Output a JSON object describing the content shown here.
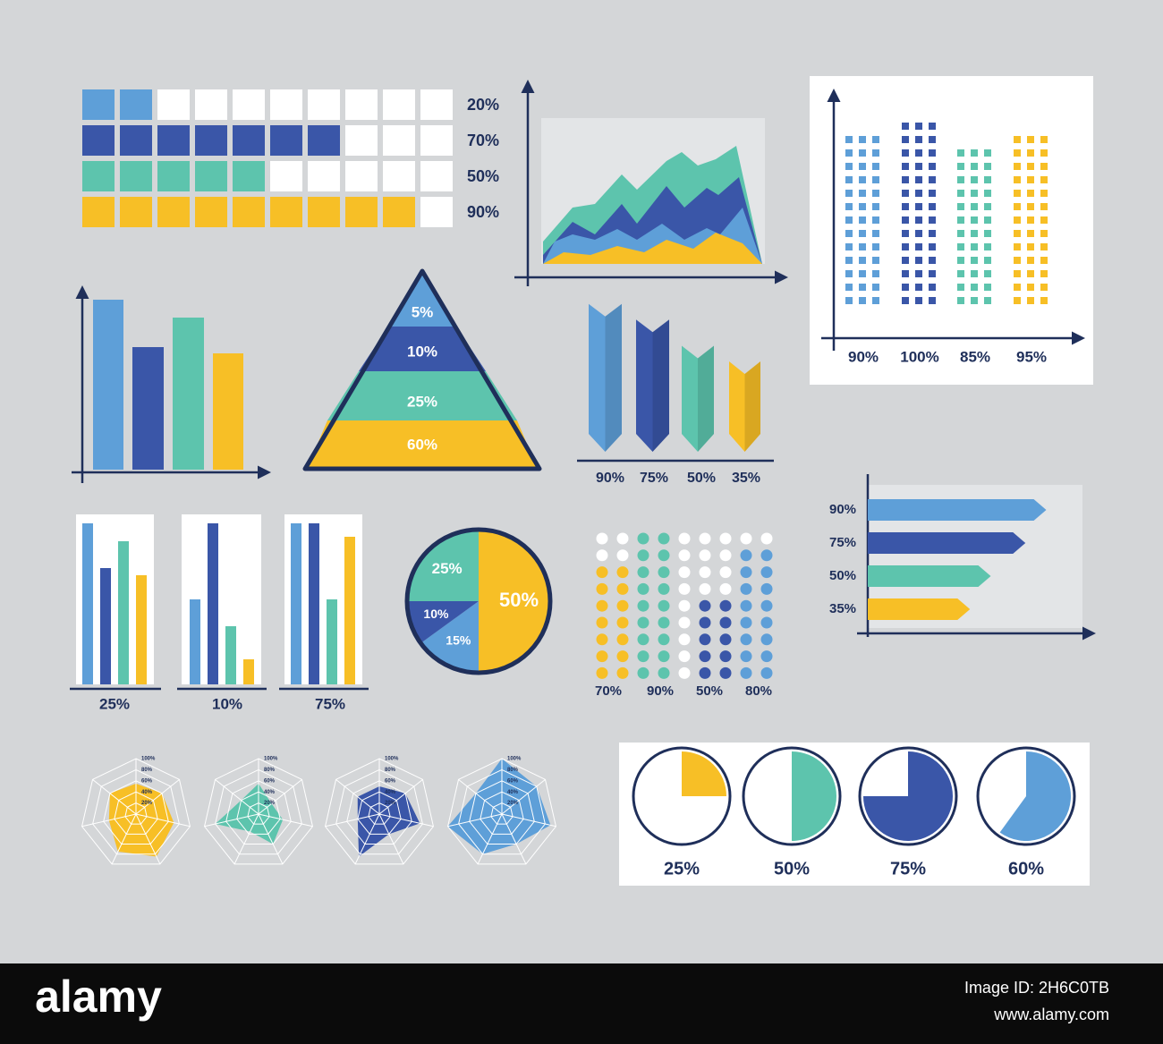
{
  "waffle": {
    "labels": [
      "20%",
      "70%",
      "50%",
      "90%"
    ]
  },
  "dotted_columns": {
    "labels": [
      "90%",
      "100%",
      "85%",
      "95%"
    ]
  },
  "pyramid": {
    "labels": [
      "5%",
      "10%",
      "25%",
      "60%"
    ]
  },
  "arrow_columns": {
    "labels": [
      "90%",
      "75%",
      "50%",
      "35%"
    ]
  },
  "arrow_bars": {
    "labels": [
      "90%",
      "75%",
      "50%",
      "35%"
    ]
  },
  "mini_bars": {
    "labels": [
      "25%",
      "10%",
      "75%"
    ]
  },
  "pie": {
    "labels": [
      "50%",
      "15%",
      "10%",
      "25%"
    ]
  },
  "dot_matrix": {
    "labels": [
      "70%",
      "90%",
      "50%",
      "80%"
    ]
  },
  "radar": {
    "ring_labels": [
      "100%",
      "80%",
      "60%",
      "40%",
      "20%"
    ]
  },
  "gauges": {
    "labels": [
      "25%",
      "50%",
      "75%",
      "60%"
    ]
  },
  "footer": {
    "logo": "alamy",
    "image_id": "Image ID: 2H6C0TB",
    "url": "www.alamy.com"
  }
}
